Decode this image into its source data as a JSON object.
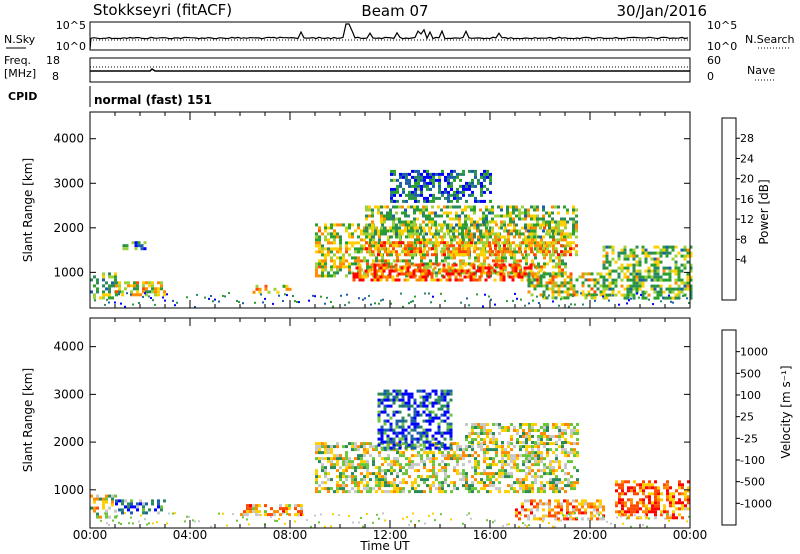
{
  "header": {
    "station": "Stokkseyri (fitACF)",
    "beam": "Beam 07",
    "date": "30/Jan/2016"
  },
  "noise_panel": {
    "left_label": "N.Sky",
    "left_ticks": [
      "10^5",
      "10^0"
    ],
    "right_label": "N.Search",
    "right_ticks": [
      "10^5",
      "10^0"
    ]
  },
  "freq_panel": {
    "left_label_line1": "Freq.",
    "left_label_line2": "[MHz]",
    "left_ticks": [
      "18",
      "8"
    ],
    "right_label": "Nave",
    "right_ticks": [
      "60",
      "0"
    ]
  },
  "cpid_panel": {
    "label": "CPID",
    "mode_text": "normal (fast) 151"
  },
  "x_axis": {
    "ticks": [
      "00:00",
      "04:00",
      "08:00",
      "12:00",
      "16:00",
      "20:00",
      "00:00"
    ],
    "label": "Time UT"
  },
  "chart_data": [
    {
      "type": "heatmap",
      "name": "power",
      "ylabel": "Slant Range [km]",
      "ylim": [
        200,
        4600
      ],
      "yticks": [
        "1000",
        "2000",
        "3000",
        "4000"
      ],
      "xlim_hours": [
        0,
        24
      ],
      "colorbar": {
        "label": "Power [dB]",
        "ticks": [
          "28",
          "24",
          "20",
          "16",
          "12",
          "8",
          "4"
        ],
        "colors": [
          "#ff0000",
          "#ff4a00",
          "#ff8c00",
          "#ffd000",
          "#9bd23c",
          "#2ca02c",
          "#2a8a5a",
          "#1b5fa8",
          "#0000ff"
        ]
      },
      "echo_regions": [
        {
          "t0": 0.0,
          "t1": 1.0,
          "r0": 400,
          "r1": 1000,
          "level": 0.45
        },
        {
          "t0": 1.0,
          "t1": 3.0,
          "r0": 500,
          "r1": 800,
          "level": 0.55
        },
        {
          "t0": 1.3,
          "t1": 2.2,
          "r0": 1500,
          "r1": 1700,
          "level": 0.25
        },
        {
          "t0": 6.5,
          "t1": 8.0,
          "r0": 580,
          "r1": 720,
          "level": 0.6
        },
        {
          "t0": 9.0,
          "t1": 19.0,
          "r0": 900,
          "r1": 2100,
          "level": 0.55
        },
        {
          "t0": 10.5,
          "t1": 18.0,
          "r0": 850,
          "r1": 1200,
          "level": 0.85
        },
        {
          "t0": 11.0,
          "t1": 19.5,
          "r0": 1400,
          "r1": 1700,
          "level": 0.7
        },
        {
          "t0": 11.0,
          "t1": 19.5,
          "r0": 1800,
          "r1": 2500,
          "level": 0.45
        },
        {
          "t0": 12.0,
          "t1": 16.0,
          "r0": 2600,
          "r1": 3300,
          "level": 0.2
        },
        {
          "t0": 17.5,
          "t1": 20.5,
          "r0": 450,
          "r1": 1000,
          "level": 0.55
        },
        {
          "t0": 20.5,
          "t1": 24.0,
          "r0": 400,
          "r1": 1600,
          "level": 0.45
        }
      ]
    },
    {
      "type": "heatmap",
      "name": "velocity",
      "ylabel": "Slant Range [km]",
      "ylim": [
        200,
        4600
      ],
      "yticks": [
        "1000",
        "2000",
        "3000",
        "4000"
      ],
      "xlim_hours": [
        0,
        24
      ],
      "colorbar": {
        "label": "Velocity [m s⁻¹]",
        "ticks": [
          "1000",
          "500",
          "100",
          "25",
          "-25",
          "-100",
          "-500",
          "-1000"
        ],
        "colors": [
          "#0000ff",
          "#1b5fa8",
          "#2a8a5a",
          "#6cc63c",
          "#c8c8c8",
          "#ffd000",
          "#ff8c00",
          "#ff4a00",
          "#ff0000"
        ]
      },
      "echo_regions": [
        {
          "t0": 0.0,
          "t1": 1.0,
          "r0": 400,
          "r1": 900,
          "level": 0.55
        },
        {
          "t0": 1.0,
          "t1": 3.0,
          "r0": 500,
          "r1": 800,
          "level": 0.3
        },
        {
          "t0": 6.0,
          "t1": 8.5,
          "r0": 500,
          "r1": 700,
          "level": 0.65
        },
        {
          "t0": 9.0,
          "t1": 19.5,
          "r0": 950,
          "r1": 2000,
          "level": 0.5
        },
        {
          "t0": 15.0,
          "t1": 19.5,
          "r0": 2000,
          "r1": 2400,
          "level": 0.5
        },
        {
          "t0": 11.5,
          "t1": 14.5,
          "r0": 1900,
          "r1": 3100,
          "level": 0.15
        },
        {
          "t0": 17.0,
          "t1": 20.5,
          "r0": 400,
          "r1": 800,
          "level": 0.7
        },
        {
          "t0": 21.0,
          "t1": 24.0,
          "r0": 400,
          "r1": 1200,
          "level": 0.8
        }
      ]
    }
  ]
}
